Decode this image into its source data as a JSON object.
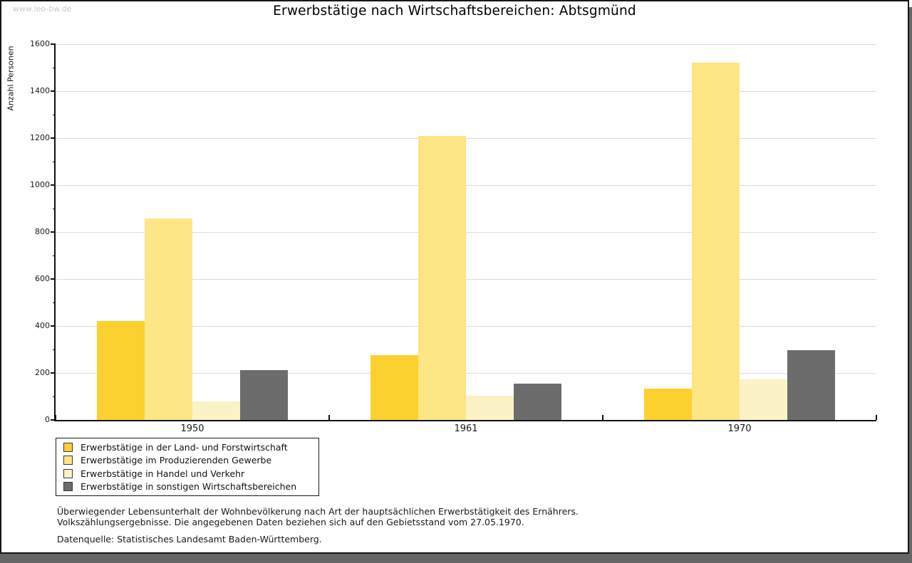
{
  "watermark": "www.leo-bw.de",
  "header": {
    "title": "Erwerbstätige nach Wirtschaftsbereichen: Abtsgmünd"
  },
  "chart_data": {
    "type": "bar",
    "title": "Erwerbstätige nach Wirtschaftsbereichen: Abtsgmünd",
    "xlabel": "",
    "ylabel": "Anzahl Personen",
    "categories": [
      "1950",
      "1961",
      "1970"
    ],
    "series": [
      {
        "name": "Erwerbstätige in der Land- und Forstwirtschaft",
        "color": "#FCD12F",
        "values": [
          420,
          276,
          132
        ]
      },
      {
        "name": "Erwerbstätige im Produzierenden Gewerbe",
        "color": "#FCE685",
        "values": [
          858,
          1208,
          1522
        ]
      },
      {
        "name": "Erwerbstätige in Handel und Verkehr",
        "color": "#FBF2C6",
        "values": [
          80,
          103,
          173
        ]
      },
      {
        "name": "Erwerbstätige in sonstigen Wirtschaftsbereichen",
        "color": "#6C6C6C",
        "values": [
          212,
          156,
          297
        ]
      }
    ],
    "ylim": [
      0,
      1600
    ],
    "ytick_step": 200,
    "yminor_step": 100,
    "grid": true,
    "legend_position": "bottom-left"
  },
  "footnotes": {
    "line1": "Überwiegender Lebensunterhalt der Wohnbevölkerung nach Art der hauptsächlichen Erwerbstätigkeit des Ernährers.",
    "line2": "Volkszählungsergebnisse. Die angegebenen Daten beziehen sich auf den Gebietsstand vom 27.05.1970.",
    "source": "Datenquelle: Statistisches Landesamt Baden-Württemberg."
  },
  "colors": {
    "gridline": "#DCDCDC",
    "axis": "#111111",
    "shadow": "#666666",
    "watermark": "#C9C9C9"
  }
}
